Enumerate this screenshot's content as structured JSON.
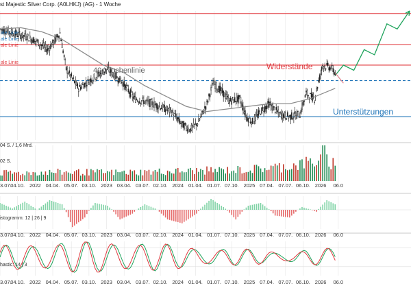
{
  "header": {
    "title": "st Majestic Silver Corp. (A0LHKJ) (AG) - 1 Woche"
  },
  "legend": {
    "items": [
      {
        "label": "ale Linie",
        "color": "#1f74b8"
      },
      {
        "label": "ale Linie",
        "color": "#1f74b8"
      },
      {
        "label": "ale Linie",
        "color": "#e0393e"
      },
      {
        "label": "ale Linie",
        "color": "#e0393e"
      }
    ]
  },
  "annotations": {
    "ma_label": "40-Wochenlinie",
    "resistance_label": "Widerstände",
    "support_label": "Unterstützungen"
  },
  "volume_panel": {
    "label_top": "04 S. / 1,6 Mrd.",
    "label_mid": "02 S."
  },
  "macd_panel": {
    "label": "istogramm: 12 | 26 | 9"
  },
  "stoch_panel": {
    "label": "hastic: 14 | 3"
  },
  "xaxis": {
    "ticks": [
      "3.07.",
      "04.10.",
      "2022",
      "04.04.",
      "05.07.",
      "03.10.",
      "2023",
      "03.04.",
      "03.07.",
      "02.10.",
      "2024",
      "01.04.",
      "01.07.",
      "07.10.",
      "2025",
      "07.04.",
      "07.07.",
      "06.10.",
      "2026",
      "06.0"
    ]
  },
  "colors": {
    "up": "#1f8a52",
    "down": "#c0392b",
    "resistance": "#e0393e",
    "support": "#1f74b8",
    "ma": "#8c8c8c",
    "projection": "#1fa35c",
    "stoch_k": "#1fa35c",
    "stoch_d": "#e0393e"
  },
  "chart_data": [
    {
      "type": "candlestick",
      "title": "st Majestic Silver Corp. (A0LHKJ) (AG) - 1 Woche",
      "x_ticks": [
        "3.07.",
        "04.10.",
        "2022",
        "04.04.",
        "05.07.",
        "03.10.",
        "2023",
        "03.04.",
        "03.07.",
        "02.10.",
        "2024",
        "01.04.",
        "01.07.",
        "07.10.",
        "2025",
        "07.04.",
        "07.07.",
        "06.10.",
        "2026",
        "06.0"
      ],
      "y_axis": "hidden",
      "ylim": [
        0,
        100
      ],
      "price_path": [
        {
          "i": 0,
          "v": 86
        },
        {
          "i": 8,
          "v": 84
        },
        {
          "i": 16,
          "v": 82
        },
        {
          "i": 26,
          "v": 80
        },
        {
          "i": 36,
          "v": 76
        },
        {
          "i": 46,
          "v": 70
        },
        {
          "i": 52,
          "v": 76
        },
        {
          "i": 58,
          "v": 83
        },
        {
          "i": 64,
          "v": 55
        },
        {
          "i": 76,
          "v": 40
        },
        {
          "i": 90,
          "v": 48
        },
        {
          "i": 104,
          "v": 55
        },
        {
          "i": 118,
          "v": 45
        },
        {
          "i": 130,
          "v": 32
        },
        {
          "i": 148,
          "v": 28
        },
        {
          "i": 166,
          "v": 22
        },
        {
          "i": 176,
          "v": 12
        },
        {
          "i": 184,
          "v": 8
        },
        {
          "i": 192,
          "v": 14
        },
        {
          "i": 200,
          "v": 28
        },
        {
          "i": 206,
          "v": 44
        },
        {
          "i": 214,
          "v": 38
        },
        {
          "i": 222,
          "v": 30
        },
        {
          "i": 232,
          "v": 32
        },
        {
          "i": 238,
          "v": 18
        },
        {
          "i": 244,
          "v": 14
        },
        {
          "i": 252,
          "v": 22
        },
        {
          "i": 260,
          "v": 28
        },
        {
          "i": 270,
          "v": 20
        },
        {
          "i": 280,
          "v": 18
        },
        {
          "i": 290,
          "v": 20
        },
        {
          "i": 296,
          "v": 36
        },
        {
          "i": 304,
          "v": 32
        },
        {
          "i": 312,
          "v": 58
        },
        {
          "i": 320,
          "v": 56
        },
        {
          "i": 324,
          "v": 52
        }
      ],
      "series": [
        {
          "name": "40-Wochenlinie",
          "type": "line",
          "points": [
            {
              "i": 0,
              "v": 86
            },
            {
              "i": 20,
              "v": 87
            },
            {
              "i": 40,
              "v": 84
            },
            {
              "i": 60,
              "v": 78
            },
            {
              "i": 80,
              "v": 68
            },
            {
              "i": 100,
              "v": 58
            },
            {
              "i": 120,
              "v": 52
            },
            {
              "i": 140,
              "v": 42
            },
            {
              "i": 160,
              "v": 34
            },
            {
              "i": 180,
              "v": 26
            },
            {
              "i": 200,
              "v": 22
            },
            {
              "i": 220,
              "v": 24
            },
            {
              "i": 240,
              "v": 26
            },
            {
              "i": 260,
              "v": 28
            },
            {
              "i": 280,
              "v": 28
            },
            {
              "i": 300,
              "v": 32
            },
            {
              "i": 324,
              "v": 40
            }
          ]
        },
        {
          "name": "projection",
          "type": "line",
          "points": [
            {
              "i": 324,
              "v": 50
            },
            {
              "i": 332,
              "v": 58
            },
            {
              "i": 342,
              "v": 54
            },
            {
              "i": 352,
              "v": 70
            },
            {
              "i": 362,
              "v": 66
            },
            {
              "i": 374,
              "v": 90
            },
            {
              "i": 384,
              "v": 86
            },
            {
              "i": 396,
              "v": 100
            }
          ]
        }
      ],
      "hlines": [
        {
          "label": "Widerstände",
          "v": 98,
          "style": "solid",
          "color": "#e0393e"
        },
        {
          "label": "",
          "v": 74,
          "style": "solid",
          "color": "#e0393e"
        },
        {
          "label": "",
          "v": 58,
          "style": "solid",
          "color": "#e0393e"
        },
        {
          "label": "",
          "v": 46,
          "style": "dashed",
          "color": "#1f74b8"
        },
        {
          "label": "Unterstützungen",
          "v": 18,
          "style": "solid",
          "color": "#1f74b8"
        }
      ],
      "n_bars": 396,
      "ticks_at": [
        0,
        17,
        34,
        51,
        69,
        86,
        103,
        120,
        138,
        155,
        172,
        189,
        207,
        224,
        241,
        258,
        276,
        293,
        310,
        327
      ]
    },
    {
      "type": "bar",
      "name": "volume",
      "label": "04 S. / 1,6 Mrd.",
      "profile": [
        {
          "i": 0,
          "v": 22
        },
        {
          "i": 60,
          "v": 25
        },
        {
          "i": 120,
          "v": 24
        },
        {
          "i": 180,
          "v": 28
        },
        {
          "i": 240,
          "v": 32
        },
        {
          "i": 280,
          "v": 42
        },
        {
          "i": 310,
          "v": 58
        },
        {
          "i": 324,
          "v": 50
        }
      ],
      "peak": {
        "i": 313,
        "v": 100
      }
    },
    {
      "type": "bar",
      "name": "macd-histogram",
      "label": "istogramm: 12 | 26 | 9",
      "ylim": [
        -1,
        1
      ],
      "points": [
        {
          "i": 0,
          "v": 0.5
        },
        {
          "i": 12,
          "v": 0.1
        },
        {
          "i": 24,
          "v": 0.6
        },
        {
          "i": 36,
          "v": 0.0
        },
        {
          "i": 48,
          "v": 0.7
        },
        {
          "i": 60,
          "v": 0.4
        },
        {
          "i": 70,
          "v": -0.9
        },
        {
          "i": 82,
          "v": -0.4
        },
        {
          "i": 92,
          "v": 0.5
        },
        {
          "i": 104,
          "v": 0.3
        },
        {
          "i": 116,
          "v": -0.5
        },
        {
          "i": 128,
          "v": -0.2
        },
        {
          "i": 140,
          "v": 0.4
        },
        {
          "i": 150,
          "v": 0.1
        },
        {
          "i": 162,
          "v": -0.5
        },
        {
          "i": 176,
          "v": -0.7
        },
        {
          "i": 190,
          "v": -0.2
        },
        {
          "i": 204,
          "v": 0.8
        },
        {
          "i": 216,
          "v": 0.2
        },
        {
          "i": 228,
          "v": -0.5
        },
        {
          "i": 240,
          "v": 0.3
        },
        {
          "i": 252,
          "v": 0.5
        },
        {
          "i": 266,
          "v": -0.3
        },
        {
          "i": 280,
          "v": -0.4
        },
        {
          "i": 292,
          "v": 0.2
        },
        {
          "i": 306,
          "v": -0.1
        },
        {
          "i": 316,
          "v": 0.7
        },
        {
          "i": 324,
          "v": 0.4
        }
      ]
    },
    {
      "type": "line",
      "name": "stochastic",
      "label": "hastic: 14 | 3",
      "ylim": [
        0,
        100
      ],
      "series": [
        {
          "name": "%K",
          "color": "#1fa35c",
          "period": 26,
          "phase": 0
        },
        {
          "name": "%D",
          "color": "#e0393e",
          "period": 26,
          "phase": 2
        }
      ]
    }
  ]
}
